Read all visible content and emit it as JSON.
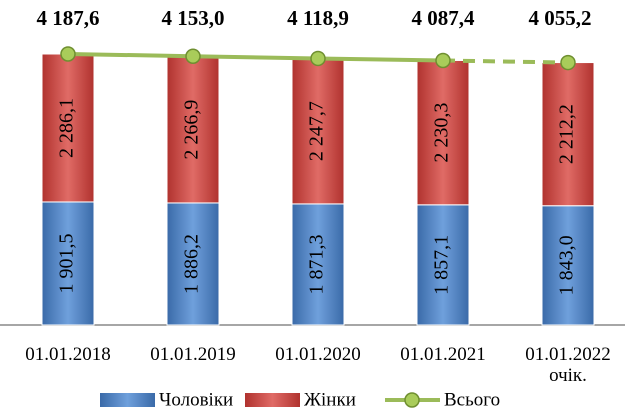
{
  "chart_data": {
    "type": "bar",
    "stacked": true,
    "categories": [
      "01.01.2018",
      "01.01.2019",
      "01.01.2020",
      "01.01.2021",
      "01.01.2022 очік."
    ],
    "series": [
      {
        "name": "Чоловіки",
        "color": "#4f81bd",
        "values": [
          1901.5,
          1886.2,
          1871.3,
          1857.1,
          1843.0
        ],
        "value_labels": [
          "1 901,5",
          "1 886,2",
          "1 871,3",
          "1 857,1",
          "1 843,0"
        ]
      },
      {
        "name": "Жінки",
        "color": "#c0504d",
        "values": [
          2286.1,
          2266.9,
          2247.7,
          2230.3,
          2212.2
        ],
        "value_labels": [
          "2 286,1",
          "2 266,9",
          "2 247,7",
          "2 230,3",
          "2 212,2"
        ]
      },
      {
        "name": "Всього",
        "type": "line",
        "color": "#9bbb59",
        "dash_from_index": 3,
        "values": [
          4187.6,
          4153.0,
          4118.9,
          4087.4,
          4055.2
        ],
        "value_labels": [
          "4 187,6",
          "4 153,0",
          "4 118,9",
          "4 087,4",
          "4 055,2"
        ]
      }
    ],
    "legend": "bottom"
  }
}
